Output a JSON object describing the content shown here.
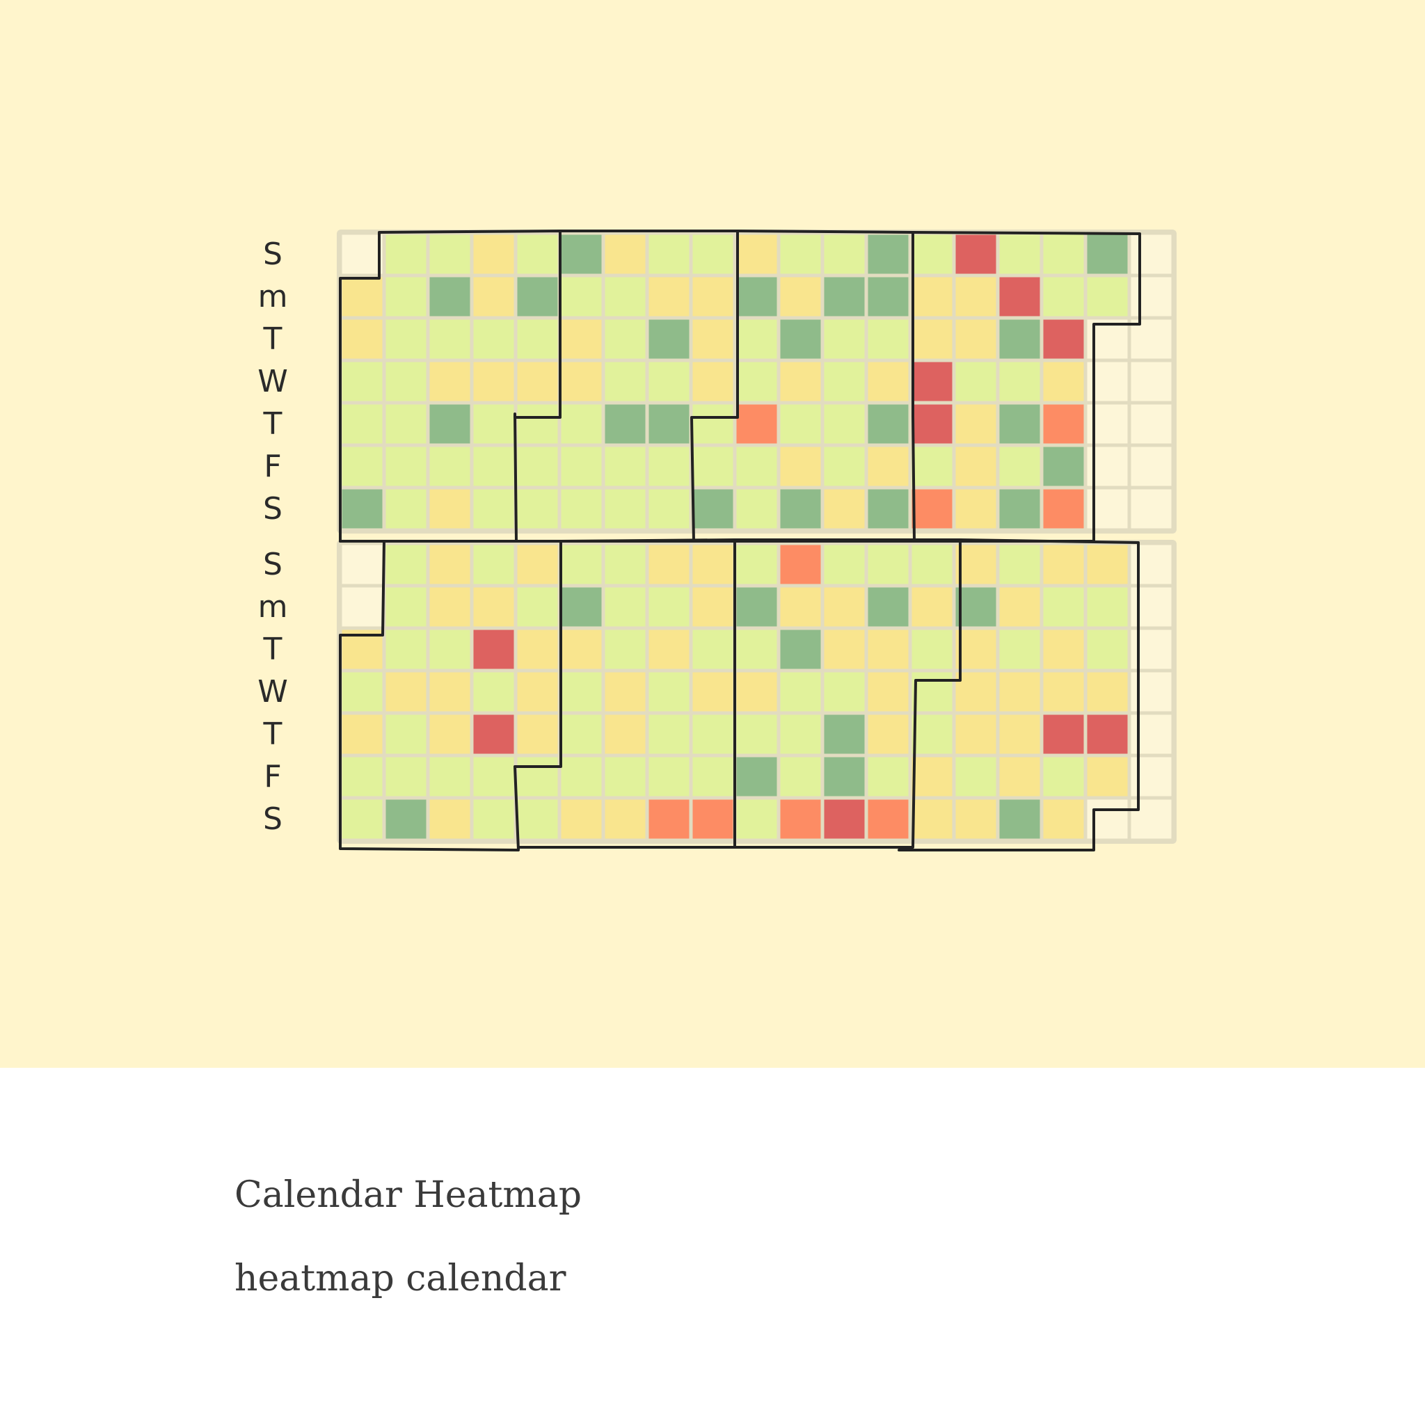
{
  "caption": {
    "title": "Calendar Heatmap",
    "subtitle": "heatmap calendar"
  },
  "colors": {
    "background": "#fff5cc",
    "grid": "#e2dcc0",
    "outline": "#222222",
    "empty": "#fdf6d8"
  },
  "chart_data": {
    "type": "heatmap",
    "title": "",
    "row_labels": [
      "S",
      "m",
      "T",
      "W",
      "T",
      "F",
      "S",
      "S",
      "m",
      "T",
      "W",
      "T",
      "F",
      "S"
    ],
    "column_count": 19,
    "empty_value": 0,
    "levels": [
      {
        "value": 1,
        "color": "#8fbb8a"
      },
      {
        "value": 2,
        "color": "#e1f29b"
      },
      {
        "value": 3,
        "color": "#f9e58e"
      },
      {
        "value": 4,
        "color": "#fd8c64"
      },
      {
        "value": 5,
        "color": "#dd6260"
      }
    ],
    "panels": [
      {
        "rows": [
          [
            0,
            2,
            2,
            3,
            2,
            1,
            3,
            2,
            2,
            3,
            2,
            2,
            1,
            2,
            5,
            2,
            2,
            1,
            0
          ],
          [
            3,
            2,
            1,
            3,
            1,
            2,
            2,
            3,
            3,
            1,
            3,
            1,
            1,
            3,
            3,
            5,
            2,
            2,
            0
          ],
          [
            3,
            2,
            2,
            2,
            2,
            3,
            2,
            1,
            3,
            2,
            1,
            2,
            2,
            3,
            3,
            1,
            5,
            0,
            0
          ],
          [
            2,
            2,
            3,
            3,
            3,
            3,
            2,
            2,
            3,
            2,
            3,
            2,
            3,
            5,
            2,
            2,
            3,
            0,
            0
          ],
          [
            2,
            2,
            1,
            2,
            2,
            2,
            1,
            1,
            2,
            4,
            2,
            2,
            1,
            5,
            3,
            1,
            4,
            0,
            0
          ],
          [
            2,
            2,
            2,
            2,
            2,
            2,
            2,
            2,
            2,
            2,
            3,
            2,
            3,
            2,
            3,
            2,
            1,
            0,
            0
          ],
          [
            1,
            2,
            3,
            2,
            2,
            2,
            2,
            2,
            1,
            2,
            1,
            3,
            1,
            4,
            3,
            1,
            4,
            0,
            0
          ]
        ]
      },
      {
        "rows": [
          [
            0,
            2,
            3,
            2,
            3,
            2,
            2,
            3,
            3,
            2,
            4,
            2,
            2,
            2,
            3,
            2,
            3,
            3,
            0
          ],
          [
            0,
            2,
            3,
            3,
            2,
            1,
            2,
            2,
            3,
            1,
            3,
            3,
            1,
            3,
            1,
            3,
            2,
            2,
            0
          ],
          [
            3,
            2,
            2,
            5,
            3,
            3,
            2,
            3,
            2,
            2,
            1,
            3,
            3,
            2,
            3,
            2,
            3,
            2,
            0
          ],
          [
            2,
            3,
            3,
            2,
            3,
            2,
            3,
            2,
            3,
            3,
            2,
            2,
            3,
            2,
            3,
            3,
            3,
            3,
            0
          ],
          [
            3,
            2,
            3,
            5,
            3,
            2,
            3,
            2,
            2,
            2,
            2,
            1,
            3,
            2,
            3,
            3,
            5,
            5,
            0
          ],
          [
            2,
            2,
            2,
            2,
            2,
            2,
            2,
            2,
            2,
            1,
            2,
            1,
            2,
            3,
            2,
            3,
            2,
            3,
            0
          ],
          [
            2,
            1,
            3,
            2,
            2,
            3,
            3,
            4,
            4,
            2,
            4,
            5,
            4,
            3,
            3,
            1,
            3,
            0,
            0
          ]
        ]
      }
    ]
  }
}
